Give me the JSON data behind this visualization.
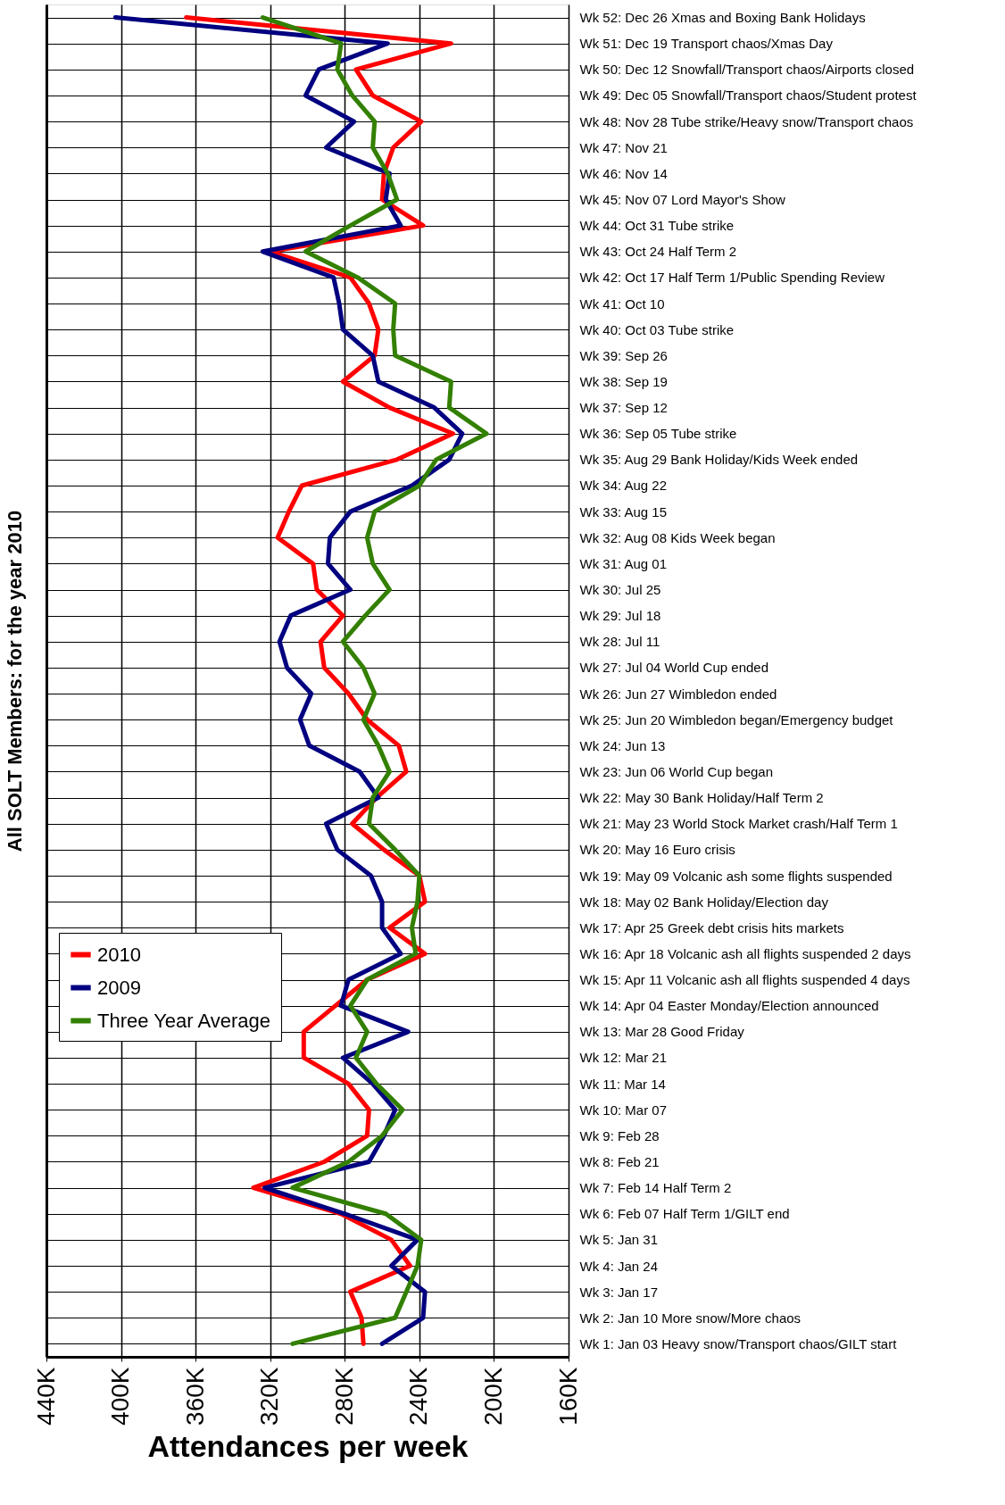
{
  "chart_data": {
    "type": "line",
    "ylabel": "All SOLT Members: for the year 2010",
    "xlabel": "Attendances per week",
    "orientation": "horizontal",
    "categories": [
      "Wk 52: Dec 26 Xmas and Boxing Bank Holidays",
      "Wk 51: Dec 19 Transport chaos/Xmas Day",
      "Wk 50: Dec 12 Snowfall/Transport chaos/Airports closed",
      "Wk 49: Dec 05 Snowfall/Transport chaos/Student protest",
      "Wk 48: Nov 28 Tube strike/Heavy snow/Transport chaos",
      "Wk 47: Nov 21",
      "Wk 46: Nov 14",
      "Wk 45: Nov 07 Lord Mayor's Show",
      "Wk 44: Oct 31 Tube strike",
      "Wk 43: Oct 24 Half Term 2",
      "Wk 42: Oct 17 Half Term 1/Public Spending Review",
      "Wk 41: Oct 10",
      "Wk 40: Oct 03 Tube strike",
      "Wk 39: Sep 26",
      "Wk 38: Sep 19",
      "Wk 37: Sep 12",
      "Wk 36: Sep 05 Tube strike",
      "Wk 35: Aug 29 Bank Holiday/Kids Week ended",
      "Wk 34: Aug 22",
      "Wk 33: Aug 15",
      "Wk 32: Aug 08 Kids Week began",
      "Wk 31: Aug 01",
      "Wk 30: Jul 25",
      "Wk 29: Jul 18",
      "Wk 28: Jul 11",
      "Wk 27: Jul 04 World Cup ended",
      "Wk 26: Jun 27 Wimbledon ended",
      "Wk 25: Jun 20 Wimbledon began/Emergency budget",
      "Wk 24: Jun 13",
      "Wk 23: Jun 06 World Cup began",
      "Wk 22: May 30 Bank Holiday/Half Term 2",
      "Wk 21: May 23 World Stock Market crash/Half Term 1",
      "Wk 20: May 16 Euro crisis",
      "Wk 19: May 09 Volcanic ash some flights suspended",
      "Wk 18: May 02 Bank Holiday/Election day",
      "Wk 17: Apr 25 Greek debt crisis hits markets",
      "Wk 16: Apr 18 Volcanic ash all flights suspended 2 days",
      "Wk 15: Apr 11 Volcanic ash all flights suspended 4 days",
      "Wk 14: Apr 04 Easter Monday/Election announced",
      "Wk 13: Mar 28 Good Friday",
      "Wk 12: Mar 21",
      "Wk 11: Mar 14",
      "Wk 10: Mar 07",
      "Wk 9: Feb 28",
      "Wk 8: Feb 21",
      "Wk 7: Feb 14 Half Term 2",
      "Wk 6: Feb 07 Half Term 1/GILT end",
      "Wk 5: Jan 31",
      "Wk 4: Jan 24",
      "Wk 3: Jan 17",
      "Wk 2: Jan 10 More snow/More chaos",
      "Wk 1: Jan 03 Heavy snow/Transport chaos/GILT start"
    ],
    "series": [
      {
        "name": "2010",
        "color": "#ff0000",
        "values": [
          365,
          223,
          274,
          265,
          239,
          254,
          259,
          260,
          238,
          320,
          277,
          267,
          262,
          264,
          281,
          256,
          222,
          252,
          303,
          310,
          316,
          297,
          295,
          281,
          293,
          291,
          278,
          268,
          251,
          247,
          263,
          276,
          259,
          240,
          237,
          256,
          237,
          268,
          285,
          302,
          302,
          278,
          267,
          268,
          291,
          329,
          282,
          255,
          245,
          277,
          271,
          270
        ]
      },
      {
        "name": "2009",
        "color": "#000080",
        "values": [
          403,
          257,
          294,
          301,
          275,
          290,
          256,
          258,
          250,
          324,
          286,
          283,
          281,
          265,
          262,
          232,
          217,
          224,
          244,
          277,
          288,
          289,
          277,
          309,
          315,
          311,
          298,
          304,
          299,
          272,
          262,
          290,
          284,
          266,
          260,
          260,
          250,
          278,
          282,
          246,
          281,
          265,
          253,
          259,
          267,
          323,
          280,
          241,
          255,
          237,
          238,
          260
        ]
      },
      {
        "name": "Three Year Average",
        "color": "#338000",
        "values": [
          324,
          282,
          284,
          276,
          264,
          265,
          257,
          252,
          277,
          301,
          273,
          253,
          254,
          253,
          223,
          224,
          204,
          231,
          240,
          264,
          268,
          265,
          256,
          269,
          281,
          270,
          264,
          270,
          262,
          256,
          265,
          267,
          253,
          240,
          241,
          244,
          242,
          268,
          277,
          268,
          274,
          263,
          249,
          260,
          278,
          308,
          258,
          239,
          241,
          247,
          253,
          308
        ]
      }
    ],
    "xlim": [
      440,
      160
    ],
    "xticks": [
      {
        "value": 440,
        "label": "440K"
      },
      {
        "value": 400,
        "label": "400K"
      },
      {
        "value": 360,
        "label": "360K"
      },
      {
        "value": 320,
        "label": "320K"
      },
      {
        "value": 280,
        "label": "280K"
      },
      {
        "value": 240,
        "label": "240K"
      },
      {
        "value": 200,
        "label": "200K"
      },
      {
        "value": 160,
        "label": "160K"
      }
    ],
    "grid": true,
    "legend": "left"
  }
}
